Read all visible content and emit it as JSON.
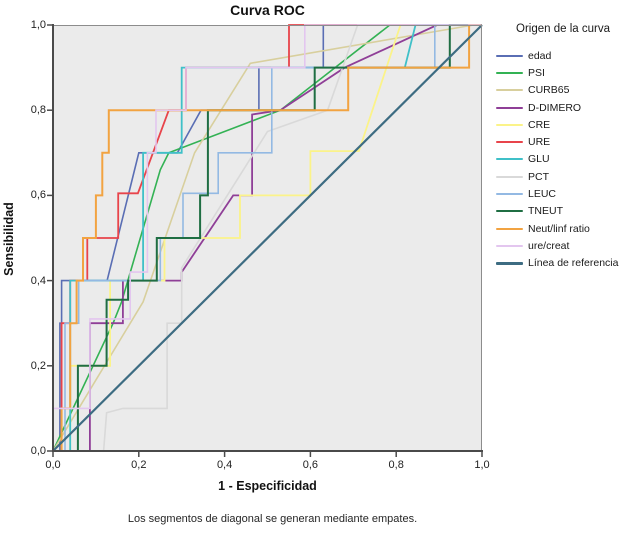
{
  "chart_data": {
    "type": "line",
    "title": "Curva ROC",
    "xlabel": "1 - Especificidad",
    "ylabel": "Sensibilidad",
    "xlim": [
      0,
      1
    ],
    "ylim": [
      0,
      1
    ],
    "grid": false,
    "plot_bg": "#ebebeb",
    "frame_color": "#8c8c8c",
    "axis_color": "#4a4a4a",
    "legend_position": "right",
    "legend_title": "Origen de la curva",
    "footnote": "Los segmentos de diagonal se generan mediante empates.",
    "tick_values": [
      0,
      0.2,
      0.4,
      0.6,
      0.8,
      1.0
    ],
    "x_tick_labels": [
      "0,0",
      "0,2",
      "0,4",
      "0,6",
      "0,8",
      "1,0"
    ],
    "y_tick_labels": [
      "0,0",
      "0,2",
      "0,4",
      "0,6",
      "0,8",
      "1,0"
    ],
    "series": [
      {
        "name": "edad",
        "color": "#5a6eb4",
        "w": 1.6,
        "points": [
          [
            0,
            0
          ],
          [
            0.016,
            0
          ],
          [
            0.016,
            0.3
          ],
          [
            0.02,
            0.3
          ],
          [
            0.02,
            0.4
          ],
          [
            0.126,
            0.4
          ],
          [
            0.2,
            0.7
          ],
          [
            0.29,
            0.7
          ],
          [
            0.345,
            0.8
          ],
          [
            0.48,
            0.8
          ],
          [
            0.48,
            0.9
          ],
          [
            0.63,
            0.9
          ],
          [
            0.63,
            1.0
          ],
          [
            1,
            1
          ]
        ]
      },
      {
        "name": "PSI",
        "color": "#33b254",
        "w": 1.6,
        "points": [
          [
            0,
            0
          ],
          [
            0.14,
            0.3
          ],
          [
            0.16,
            0.35
          ],
          [
            0.25,
            0.66
          ],
          [
            0.27,
            0.7
          ],
          [
            0.53,
            0.8
          ],
          [
            0.785,
            1.0
          ],
          [
            1,
            1
          ]
        ]
      },
      {
        "name": "CURB65",
        "color": "#d8cf9d",
        "w": 1.6,
        "points": [
          [
            0,
            0
          ],
          [
            0.21,
            0.35
          ],
          [
            0.33,
            0.7
          ],
          [
            0.46,
            0.91
          ],
          [
            0.98,
            1.0
          ],
          [
            1,
            1
          ]
        ]
      },
      {
        "name": "D-DIMERO",
        "color": "#8f3f97",
        "w": 1.8,
        "points": [
          [
            0,
            0
          ],
          [
            0.086,
            0
          ],
          [
            0.086,
            0.3
          ],
          [
            0.163,
            0.3
          ],
          [
            0.163,
            0.4
          ],
          [
            0.3,
            0.4
          ],
          [
            0.3,
            0.42
          ],
          [
            0.42,
            0.6
          ],
          [
            0.464,
            0.6
          ],
          [
            0.464,
            0.79
          ],
          [
            0.53,
            0.8
          ],
          [
            0.68,
            0.9
          ],
          [
            0.895,
            1.0
          ],
          [
            1,
            1
          ]
        ]
      },
      {
        "name": "CRE",
        "color": "#fbf389",
        "w": 1.8,
        "points": [
          [
            0,
            0
          ],
          [
            0.04,
            0
          ],
          [
            0.04,
            0.2
          ],
          [
            0.133,
            0.2
          ],
          [
            0.133,
            0.4
          ],
          [
            0.26,
            0.4
          ],
          [
            0.26,
            0.5
          ],
          [
            0.436,
            0.5
          ],
          [
            0.436,
            0.6
          ],
          [
            0.6,
            0.6
          ],
          [
            0.6,
            0.704
          ],
          [
            0.713,
            0.704
          ],
          [
            0.81,
            1.0
          ],
          [
            1,
            1
          ]
        ]
      },
      {
        "name": "URE",
        "color": "#e8444b",
        "w": 1.8,
        "points": [
          [
            0,
            0
          ],
          [
            0.02,
            0
          ],
          [
            0.02,
            0.3
          ],
          [
            0.04,
            0.3
          ],
          [
            0.04,
            0.4
          ],
          [
            0.08,
            0.4
          ],
          [
            0.08,
            0.5
          ],
          [
            0.152,
            0.5
          ],
          [
            0.152,
            0.605
          ],
          [
            0.198,
            0.605
          ],
          [
            0.27,
            0.8
          ],
          [
            0.31,
            0.8
          ],
          [
            0.31,
            0.9
          ],
          [
            0.55,
            0.9
          ],
          [
            0.55,
            1.0
          ],
          [
            1,
            1
          ]
        ]
      },
      {
        "name": "GLU",
        "color": "#3fc0c8",
        "w": 1.8,
        "points": [
          [
            0,
            0
          ],
          [
            0.04,
            0
          ],
          [
            0.04,
            0.4
          ],
          [
            0.21,
            0.4
          ],
          [
            0.21,
            0.7
          ],
          [
            0.3,
            0.7
          ],
          [
            0.3,
            0.9
          ],
          [
            0.82,
            0.9
          ],
          [
            0.845,
            1.0
          ],
          [
            1,
            1
          ]
        ]
      },
      {
        "name": "PCT",
        "color": "#d9d9d9",
        "w": 1.6,
        "points": [
          [
            0,
            0
          ],
          [
            0.118,
            0
          ],
          [
            0.125,
            0.09
          ],
          [
            0.163,
            0.1
          ],
          [
            0.266,
            0.1
          ],
          [
            0.266,
            0.3
          ],
          [
            0.3,
            0.3
          ],
          [
            0.3,
            0.43
          ],
          [
            0.5,
            0.75
          ],
          [
            0.64,
            0.8
          ],
          [
            0.71,
            1.0
          ],
          [
            1,
            1
          ]
        ]
      },
      {
        "name": "LEUC",
        "color": "#93b9e3",
        "w": 1.6,
        "points": [
          [
            0,
            0
          ],
          [
            0.028,
            0
          ],
          [
            0.028,
            0.3
          ],
          [
            0.06,
            0.3
          ],
          [
            0.06,
            0.4
          ],
          [
            0.25,
            0.4
          ],
          [
            0.25,
            0.5
          ],
          [
            0.303,
            0.5
          ],
          [
            0.303,
            0.605
          ],
          [
            0.385,
            0.605
          ],
          [
            0.385,
            0.7
          ],
          [
            0.51,
            0.7
          ],
          [
            0.51,
            0.9
          ],
          [
            0.89,
            0.9
          ],
          [
            0.89,
            1.0
          ],
          [
            1,
            1
          ]
        ]
      },
      {
        "name": "TNEUT",
        "color": "#1f6e43",
        "w": 2,
        "points": [
          [
            0,
            0
          ],
          [
            0.058,
            0
          ],
          [
            0.058,
            0.2
          ],
          [
            0.125,
            0.2
          ],
          [
            0.125,
            0.355
          ],
          [
            0.175,
            0.355
          ],
          [
            0.175,
            0.4
          ],
          [
            0.242,
            0.4
          ],
          [
            0.242,
            0.5
          ],
          [
            0.343,
            0.5
          ],
          [
            0.343,
            0.6
          ],
          [
            0.361,
            0.6
          ],
          [
            0.361,
            0.8
          ],
          [
            0.61,
            0.8
          ],
          [
            0.61,
            0.9
          ],
          [
            0.925,
            0.9
          ],
          [
            0.925,
            1.0
          ],
          [
            1,
            1
          ]
        ]
      },
      {
        "name": "Neut/linf ratio",
        "color": "#f2a341",
        "w": 2,
        "points": [
          [
            0,
            0
          ],
          [
            0.02,
            0
          ],
          [
            0.02,
            0.1
          ],
          [
            0.04,
            0.1
          ],
          [
            0.04,
            0.3
          ],
          [
            0.055,
            0.3
          ],
          [
            0.055,
            0.4
          ],
          [
            0.07,
            0.4
          ],
          [
            0.07,
            0.5
          ],
          [
            0.1,
            0.5
          ],
          [
            0.1,
            0.6
          ],
          [
            0.115,
            0.6
          ],
          [
            0.115,
            0.7
          ],
          [
            0.13,
            0.7
          ],
          [
            0.13,
            0.8
          ],
          [
            0.688,
            0.8
          ],
          [
            0.688,
            0.9
          ],
          [
            0.97,
            0.9
          ],
          [
            0.97,
            1.0
          ],
          [
            1,
            1
          ]
        ]
      },
      {
        "name": "ure/creat",
        "color": "#e3c6ef",
        "w": 1.6,
        "points": [
          [
            0,
            0
          ],
          [
            0,
            0.1
          ],
          [
            0.086,
            0.1
          ],
          [
            0.086,
            0.31
          ],
          [
            0.18,
            0.31
          ],
          [
            0.18,
            0.42
          ],
          [
            0.22,
            0.42
          ],
          [
            0.22,
            0.7
          ],
          [
            0.24,
            0.7
          ],
          [
            0.24,
            0.8
          ],
          [
            0.31,
            0.8
          ],
          [
            0.31,
            0.9
          ],
          [
            0.587,
            0.9
          ],
          [
            0.587,
            1.0
          ],
          [
            1,
            1
          ]
        ]
      },
      {
        "name": "Línea de referencia",
        "color": "#3d6c82",
        "w": 2.2,
        "points": [
          [
            0,
            0
          ],
          [
            1,
            1
          ]
        ]
      }
    ]
  }
}
